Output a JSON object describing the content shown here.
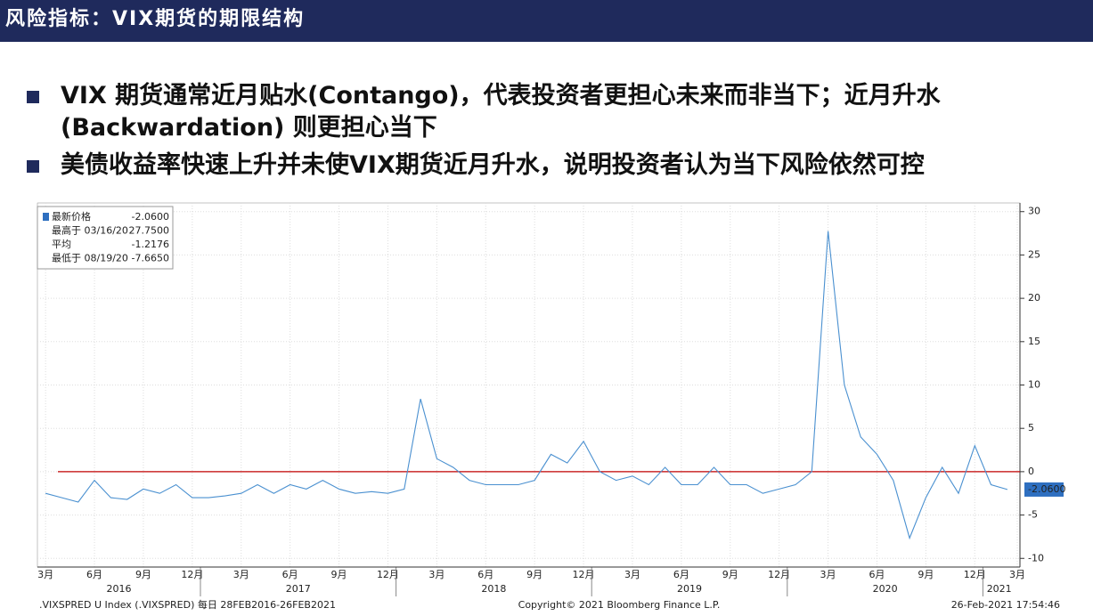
{
  "header": {
    "title": "风险指标：VIX期货的期限结构"
  },
  "bullets": [
    "VIX  期货通常近月贴水(Contango)，代表投资者更担心未来而非当下；近月升水(Backwardation) 则更担心当下",
    "美债收益率快速上升并未使VIX期货近月升水，说明投资者认为当下风险依然可控"
  ],
  "chart_data": {
    "type": "line",
    "color": "#4a90d0",
    "x": [
      "2016-03",
      "2016-04",
      "2016-05",
      "2016-06",
      "2016-07",
      "2016-08",
      "2016-09",
      "2016-10",
      "2016-11",
      "2016-12",
      "2017-01",
      "2017-02",
      "2017-03",
      "2017-04",
      "2017-05",
      "2017-06",
      "2017-07",
      "2017-08",
      "2017-09",
      "2017-10",
      "2017-11",
      "2017-12",
      "2018-01",
      "2018-02",
      "2018-03",
      "2018-04",
      "2018-05",
      "2018-06",
      "2018-07",
      "2018-08",
      "2018-09",
      "2018-10",
      "2018-11",
      "2018-12",
      "2019-01",
      "2019-02",
      "2019-03",
      "2019-04",
      "2019-05",
      "2019-06",
      "2019-07",
      "2019-08",
      "2019-09",
      "2019-10",
      "2019-11",
      "2019-12",
      "2020-01",
      "2020-02",
      "2020-03",
      "2020-04",
      "2020-05",
      "2020-06",
      "2020-07",
      "2020-08",
      "2020-09",
      "2020-10",
      "2020-11",
      "2020-12",
      "2021-01",
      "2021-02"
    ],
    "values": [
      -2.5,
      -3,
      -3.5,
      -1,
      -3,
      -3.2,
      -2,
      -2.5,
      -1.5,
      -3,
      -3,
      -2.8,
      -2.5,
      -1.5,
      -2.5,
      -1.5,
      -2,
      -1,
      -2,
      -2.5,
      -2.3,
      -2.5,
      -2,
      8.4,
      1.5,
      0.5,
      -1,
      -1.5,
      -1.5,
      -1.5,
      -1,
      2,
      1,
      3.5,
      0,
      -1,
      -0.5,
      -1.5,
      0.5,
      -1.5,
      -1.5,
      0.5,
      -1.5,
      -1.5,
      -2.5,
      -2,
      -1.5,
      0,
      27.75,
      10,
      4,
      2,
      -1,
      -7.665,
      -3,
      0.5,
      -2.5,
      3,
      -1.5,
      -2.06
    ],
    "ylim": [
      -11,
      31
    ],
    "yticks": [
      -10,
      -5,
      0,
      5,
      10,
      15,
      20,
      25,
      30
    ],
    "grid": true,
    "reference_line": 0,
    "reference_color": "#c00000",
    "last_value": {
      "value": -2.06,
      "label": "-2.0600"
    },
    "xticks": [
      {
        "value": "2016-03",
        "label": "3月"
      },
      {
        "value": "2016-06",
        "label": "6月"
      },
      {
        "value": "2016-09",
        "label": "9月"
      },
      {
        "value": "2016-12",
        "label": "12月"
      },
      {
        "value": "2017-03",
        "label": "3月"
      },
      {
        "value": "2017-06",
        "label": "6月"
      },
      {
        "value": "2017-09",
        "label": "9月"
      },
      {
        "value": "2017-12",
        "label": "12月"
      },
      {
        "value": "2018-03",
        "label": "3月"
      },
      {
        "value": "2018-06",
        "label": "6月"
      },
      {
        "value": "2018-09",
        "label": "9月"
      },
      {
        "value": "2018-12",
        "label": "12月"
      },
      {
        "value": "2019-03",
        "label": "3月"
      },
      {
        "value": "2019-06",
        "label": "6月"
      },
      {
        "value": "2019-09",
        "label": "9月"
      },
      {
        "value": "2019-12",
        "label": "12月"
      },
      {
        "value": "2020-03",
        "label": "3月"
      },
      {
        "value": "2020-06",
        "label": "6月"
      },
      {
        "value": "2020-09",
        "label": "9月"
      },
      {
        "value": "2020-12",
        "label": "12月"
      },
      {
        "value": "2021-03",
        "label": "3月"
      }
    ],
    "years": [
      2016,
      2017,
      2018,
      2019,
      2020,
      2021
    ],
    "stats": [
      {
        "label": "最新价格",
        "value": "-2.0600"
      },
      {
        "label": "最高于 03/16/20",
        "value": "27.7500"
      },
      {
        "label": "平均",
        "value": "-1.2176"
      },
      {
        "label": "最低于 08/19/20",
        "value": "-7.6650"
      }
    ],
    "footer": {
      "left": ".VIXSPRED U Index (.VIXSPRED)  每日 28FEB2016-26FEB2021",
      "center": "Copyright© 2021 Bloomberg Finance L.P.",
      "right": "26-Feb-2021 17:54:46"
    }
  }
}
